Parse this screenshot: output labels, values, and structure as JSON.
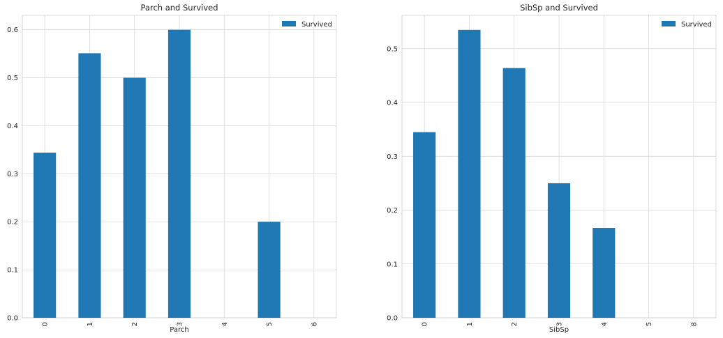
{
  "chart_data": [
    {
      "type": "bar",
      "title": "Parch and Survived",
      "xlabel": "Parch",
      "ylabel": "",
      "categories": [
        "0",
        "1",
        "2",
        "3",
        "4",
        "5",
        "6"
      ],
      "series": [
        {
          "name": "Survived",
          "values": [
            0.344,
            0.551,
            0.5,
            0.6,
            0.0,
            0.2,
            0.0
          ]
        }
      ],
      "ylim": [
        0,
        0.63
      ],
      "yticks": [
        0.0,
        0.1,
        0.2,
        0.3,
        0.4,
        0.5,
        0.6
      ],
      "ytick_labels": [
        "0.0",
        "0.1",
        "0.2",
        "0.3",
        "0.4",
        "0.5",
        "0.6"
      ],
      "grid": true,
      "legend": "top-right",
      "bar_color": "#1f77b4"
    },
    {
      "type": "bar",
      "title": "SibSp and Survived",
      "xlabel": "SibSp",
      "ylabel": "",
      "categories": [
        "0",
        "1",
        "2",
        "3",
        "4",
        "5",
        "8"
      ],
      "series": [
        {
          "name": "Survived",
          "values": [
            0.345,
            0.535,
            0.464,
            0.25,
            0.167,
            0.0,
            0.0
          ]
        }
      ],
      "ylim": [
        0,
        0.562
      ],
      "yticks": [
        0.0,
        0.1,
        0.2,
        0.3,
        0.4,
        0.5
      ],
      "ytick_labels": [
        "0.0",
        "0.1",
        "0.2",
        "0.3",
        "0.4",
        "0.5"
      ],
      "grid": true,
      "legend": "top-right",
      "bar_color": "#1f77b4"
    }
  ]
}
